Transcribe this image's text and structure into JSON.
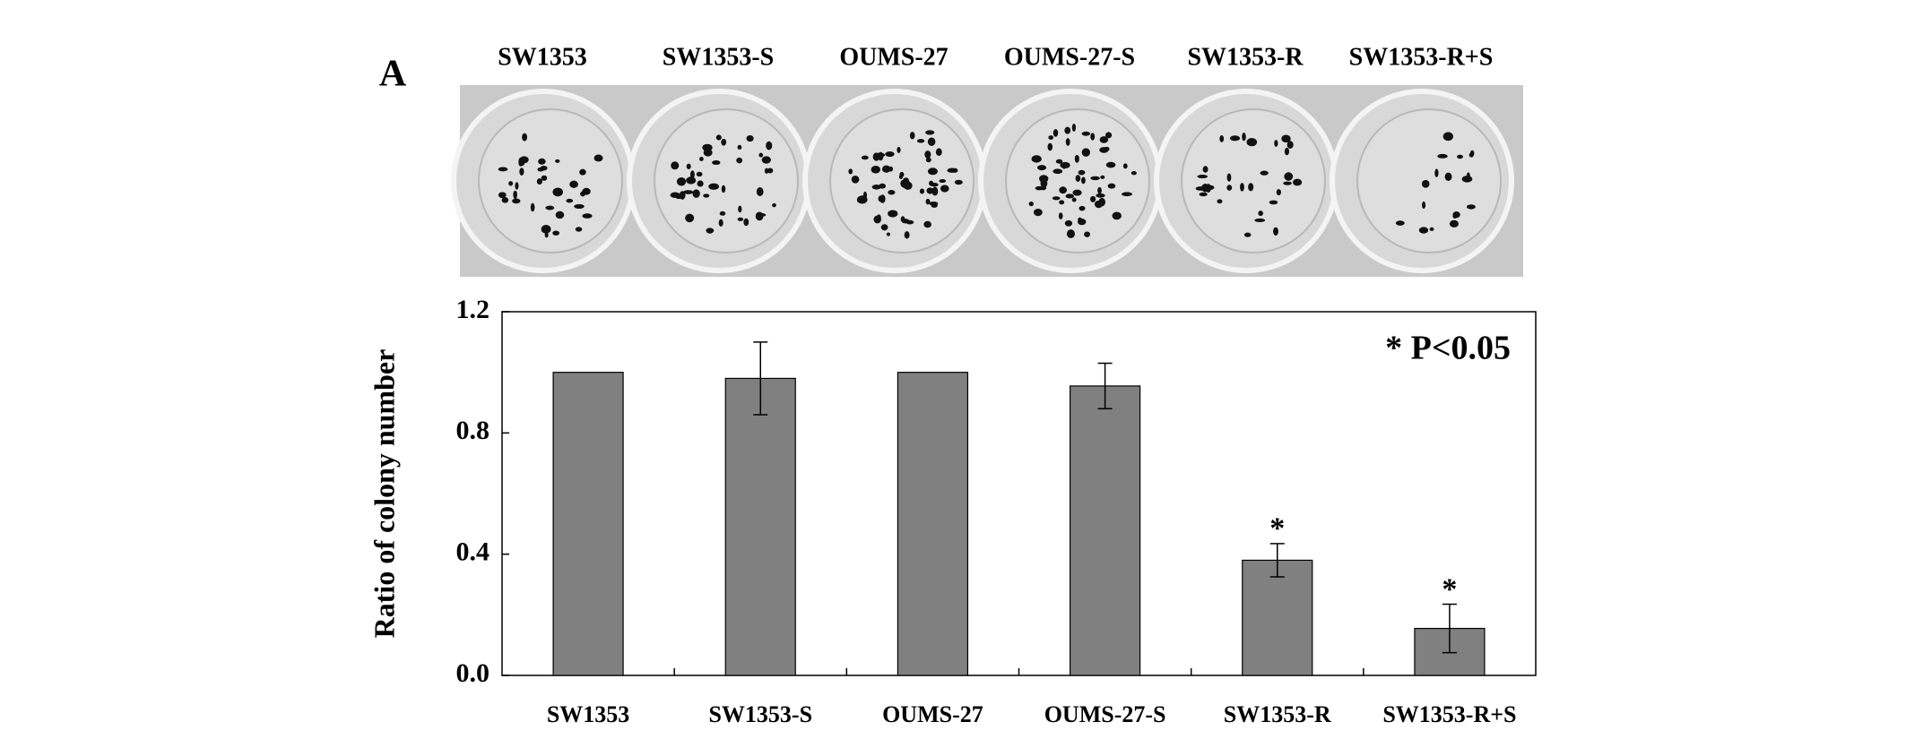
{
  "chart_data": {
    "type": "bar",
    "panel_label": "A",
    "annotation": "* P<0.05",
    "y_label": "Ratio of colony number",
    "categories": [
      "SW1353",
      "SW1353-S",
      "OUMS-27",
      "OUMS-27-S",
      "SW1353-R",
      "SW1353-R+S"
    ],
    "values": [
      1.0,
      0.98,
      1.0,
      0.955,
      0.38,
      0.155
    ],
    "errors": [
      0,
      0.12,
      0,
      0.075,
      0.055,
      0.08
    ],
    "significance_labels": [
      null,
      null,
      null,
      null,
      "*",
      "*"
    ],
    "color": "#808080",
    "ylim": [
      0,
      1.2
    ],
    "yticks": [
      {
        "value": 0,
        "label": "0.0"
      },
      0.4,
      0.8,
      1.2
    ]
  }
}
